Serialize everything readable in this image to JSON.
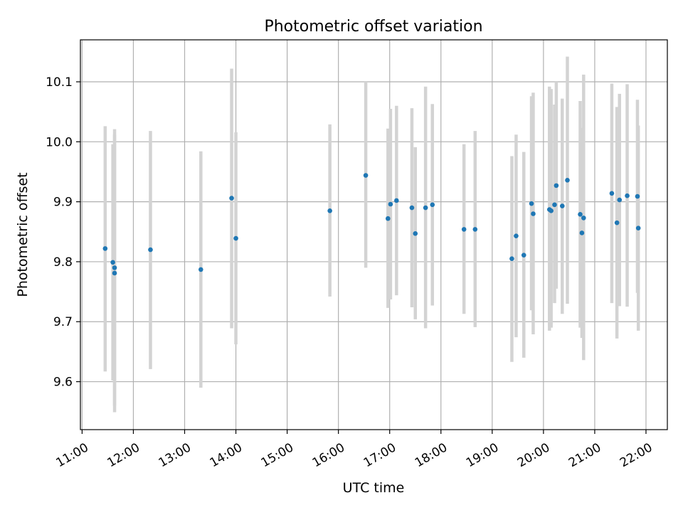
{
  "chart_data": {
    "type": "scatter",
    "title": "Photometric offset variation",
    "xlabel": "UTC time",
    "ylabel": "Photometric offset",
    "x_tick_labels": [
      "11:00",
      "12:00",
      "13:00",
      "14:00",
      "15:00",
      "16:00",
      "17:00",
      "18:00",
      "19:00",
      "20:00",
      "21:00",
      "22:00"
    ],
    "x_ticks": [
      "11:00",
      "12:00",
      "13:00",
      "14:00",
      "15:00",
      "16:00",
      "17:00",
      "18:00",
      "19:00",
      "20:00",
      "21:00",
      "22:00"
    ],
    "y_ticks": [
      9.6,
      9.7,
      9.8,
      9.9,
      10.0,
      10.1
    ],
    "y_tick_labels": [
      "9.6",
      "9.7",
      "9.8",
      "9.9",
      "10.0",
      "10.1"
    ],
    "xlim": [
      "10:58",
      "22:25"
    ],
    "ylim": [
      9.52,
      10.17
    ],
    "grid": true,
    "colors": {
      "point": "#1f77b4",
      "errorbar": "#d3d3d3",
      "grid": "#b0b0b0"
    },
    "series": [
      {
        "points": [
          {
            "x": "11:27",
            "y": 9.822,
            "low": 9.617,
            "high": 10.026
          },
          {
            "x": "11:36",
            "y": 9.799,
            "low": 9.602,
            "high": 9.996
          },
          {
            "x": "11:38",
            "y": 9.79,
            "low": 9.56,
            "high": 10.021
          },
          {
            "x": "11:38",
            "y": 9.781,
            "low": 9.549,
            "high": 10.012
          },
          {
            "x": "12:20",
            "y": 9.82,
            "low": 9.621,
            "high": 10.018
          },
          {
            "x": "13:19",
            "y": 9.787,
            "low": 9.59,
            "high": 9.984
          },
          {
            "x": "13:55",
            "y": 9.906,
            "low": 9.689,
            "high": 10.122
          },
          {
            "x": "14:00",
            "y": 9.839,
            "low": 9.662,
            "high": 10.016
          },
          {
            "x": "15:50",
            "y": 9.885,
            "low": 9.742,
            "high": 10.029
          },
          {
            "x": "16:32",
            "y": 9.944,
            "low": 9.79,
            "high": 10.1
          },
          {
            "x": "16:58",
            "y": 9.872,
            "low": 9.723,
            "high": 10.022
          },
          {
            "x": "17:01",
            "y": 9.896,
            "low": 9.737,
            "high": 10.055
          },
          {
            "x": "17:08",
            "y": 9.902,
            "low": 9.744,
            "high": 10.06
          },
          {
            "x": "17:26",
            "y": 9.89,
            "low": 9.724,
            "high": 10.056
          },
          {
            "x": "17:30",
            "y": 9.847,
            "low": 9.704,
            "high": 9.991
          },
          {
            "x": "17:42",
            "y": 9.89,
            "low": 9.689,
            "high": 10.092
          },
          {
            "x": "17:50",
            "y": 9.895,
            "low": 9.727,
            "high": 10.063
          },
          {
            "x": "18:27",
            "y": 9.854,
            "low": 9.713,
            "high": 9.996
          },
          {
            "x": "18:40",
            "y": 9.854,
            "low": 9.691,
            "high": 10.018
          },
          {
            "x": "19:23",
            "y": 9.805,
            "low": 9.633,
            "high": 9.976
          },
          {
            "x": "19:28",
            "y": 9.843,
            "low": 9.674,
            "high": 10.012
          },
          {
            "x": "19:37",
            "y": 9.811,
            "low": 9.64,
            "high": 9.983
          },
          {
            "x": "19:46",
            "y": 9.897,
            "low": 9.719,
            "high": 10.076
          },
          {
            "x": "19:48",
            "y": 9.88,
            "low": 9.679,
            "high": 10.082
          },
          {
            "x": "20:07",
            "y": 9.887,
            "low": 9.685,
            "high": 10.092
          },
          {
            "x": "20:09",
            "y": 9.885,
            "low": 9.69,
            "high": 10.088
          },
          {
            "x": "20:13",
            "y": 9.895,
            "low": 9.731,
            "high": 10.062
          },
          {
            "x": "20:15",
            "y": 9.927,
            "low": 9.755,
            "high": 10.1
          },
          {
            "x": "20:22",
            "y": 9.893,
            "low": 9.713,
            "high": 10.072
          },
          {
            "x": "20:28",
            "y": 9.936,
            "low": 9.73,
            "high": 10.142
          },
          {
            "x": "20:43",
            "y": 9.879,
            "low": 9.69,
            "high": 10.068
          },
          {
            "x": "20:45",
            "y": 9.848,
            "low": 9.673,
            "high": 10.023
          },
          {
            "x": "20:47",
            "y": 9.873,
            "low": 9.636,
            "high": 10.112
          },
          {
            "x": "21:20",
            "y": 9.914,
            "low": 9.731,
            "high": 10.097
          },
          {
            "x": "21:26",
            "y": 9.865,
            "low": 9.672,
            "high": 10.058
          },
          {
            "x": "21:29",
            "y": 9.903,
            "low": 9.726,
            "high": 10.08
          },
          {
            "x": "21:38",
            "y": 9.91,
            "low": 9.725,
            "high": 10.096
          },
          {
            "x": "21:50",
            "y": 9.909,
            "low": 9.748,
            "high": 10.07
          },
          {
            "x": "21:51",
            "y": 9.856,
            "low": 9.685,
            "high": 10.027
          }
        ]
      }
    ]
  }
}
